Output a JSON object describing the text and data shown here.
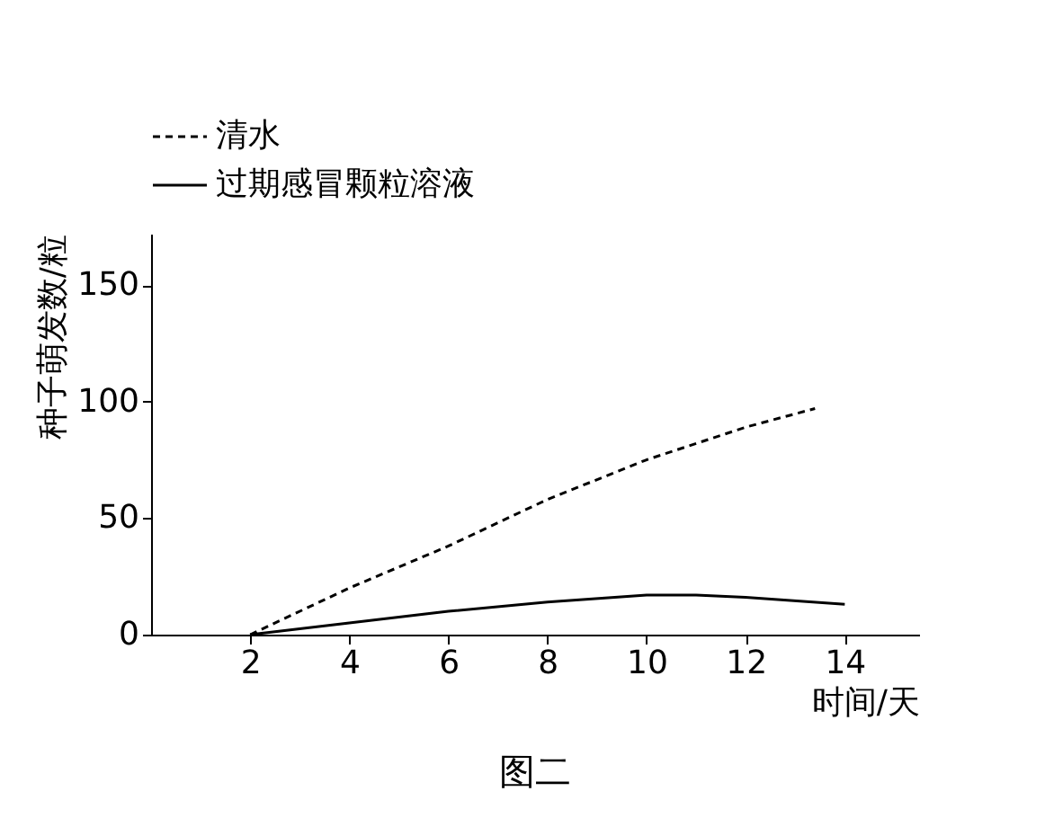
{
  "chart_data": {
    "type": "line",
    "title": "图二",
    "xlabel": "时间/天",
    "ylabel": "种子萌发数/粒",
    "xlim": [
      0,
      15.5
    ],
    "xticks": [
      2,
      4,
      6,
      8,
      10,
      12,
      14
    ],
    "ylim": [
      0,
      172
    ],
    "yticks": [
      0,
      50,
      100,
      150
    ],
    "grid": false,
    "legend": "top",
    "marker": "none",
    "series": [
      {
        "name": "清水",
        "color": "#000000",
        "line_style": "dashed",
        "x": [
          2,
          4,
          6,
          8,
          10,
          12,
          13.4
        ],
        "values": [
          0,
          20,
          38,
          58,
          75,
          89,
          97
        ]
      },
      {
        "name": "过期感冒颗粒溶液",
        "color": "#000000",
        "line_style": "solid",
        "x": [
          2,
          4,
          6,
          8,
          10,
          11,
          12,
          14
        ],
        "values": [
          0,
          5,
          10,
          14,
          17,
          17,
          16,
          13
        ]
      }
    ]
  }
}
